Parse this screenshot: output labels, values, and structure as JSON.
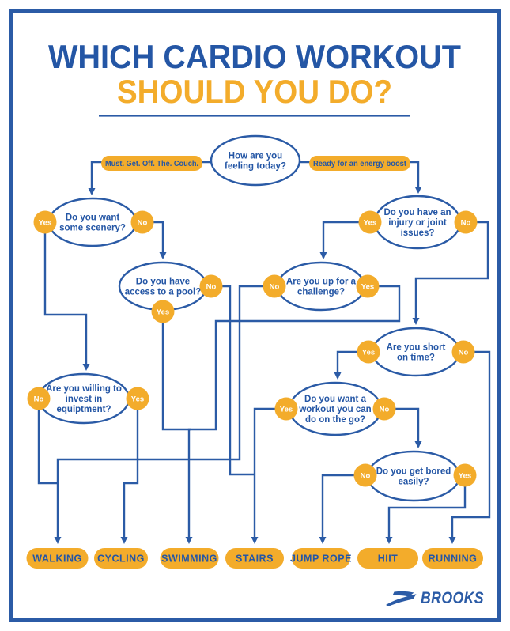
{
  "title": {
    "line1": "WHICH CARDIO WORKOUT",
    "line2": "SHOULD YOU DO?"
  },
  "colors": {
    "blue": "#2B5BA6",
    "text_blue": "#2456A5",
    "yellow": "#F3AC2B",
    "badge_text": "#FFFFFF"
  },
  "flow": {
    "nodes": [
      {
        "id": "feeling",
        "question": "How are you feeling today?",
        "lines": [
          "How are you",
          "feeling today?"
        ]
      },
      {
        "id": "scenery",
        "question": "Do you want some scenery?",
        "lines": [
          "Do you want",
          "some scenery?"
        ]
      },
      {
        "id": "pool",
        "question": "Do you have access to a pool?",
        "lines": [
          "Do you have",
          "access to a pool?"
        ]
      },
      {
        "id": "challenge",
        "question": "Are you up for a challenge?",
        "lines": [
          "Are you up for a",
          "challenge?"
        ]
      },
      {
        "id": "injury",
        "question": "Do you have an injury or joint issues?",
        "lines": [
          "Do you have an",
          "injury or joint",
          "issues?"
        ]
      },
      {
        "id": "short",
        "question": "Are you short on time?",
        "lines": [
          "Are you short",
          "on time?"
        ]
      },
      {
        "id": "go",
        "question": "Do you want a workout you can do on the go?",
        "lines": [
          "Do you want a",
          "workout you can",
          "do on the go?"
        ]
      },
      {
        "id": "bored",
        "question": "Do you get bored easily?",
        "lines": [
          "Do you get bored",
          "easily?"
        ]
      },
      {
        "id": "equipment",
        "question": "Are you willing to invest in equiptment?",
        "lines": [
          "Are you willing to",
          "invest in",
          "equiptment?"
        ]
      }
    ],
    "edges": [
      {
        "id": "e1",
        "from": "feeling",
        "to": "scenery",
        "label": "Must. Get. Off. The. Couch."
      },
      {
        "id": "e2",
        "from": "feeling",
        "to": "injury",
        "label": "Ready for an energy boost"
      },
      {
        "id": "e3",
        "from": "scenery",
        "to": "equipment",
        "answer": "Yes"
      },
      {
        "id": "e4",
        "from": "scenery",
        "to": "pool",
        "answer": "No"
      },
      {
        "id": "e5",
        "from": "pool",
        "to": "SWIMMING",
        "answer": "Yes"
      },
      {
        "id": "e6",
        "from": "pool",
        "to": "STAIRS",
        "answer": "No"
      },
      {
        "id": "e7",
        "from": "equipment",
        "to": "WALKING",
        "answer": "No"
      },
      {
        "id": "e8",
        "from": "challenge",
        "to": "WALKING",
        "answer": "No"
      },
      {
        "id": "e9",
        "from": "challenge",
        "to": "SWIMMING",
        "answer": "Yes"
      },
      {
        "id": "e10",
        "from": "equipment",
        "to": "CYCLING",
        "answer": "Yes"
      },
      {
        "id": "e11",
        "from": "injury",
        "to": "challenge",
        "answer": "Yes"
      },
      {
        "id": "e12",
        "from": "injury",
        "to": "short",
        "answer": "No"
      },
      {
        "id": "e13",
        "from": "short",
        "to": "go",
        "answer": "Yes"
      },
      {
        "id": "e14",
        "from": "short",
        "to": "RUNNING",
        "answer": "No"
      },
      {
        "id": "e15",
        "from": "go",
        "to": "STAIRS",
        "answer": "Yes"
      },
      {
        "id": "e16",
        "from": "go",
        "to": "bored",
        "answer": "No"
      },
      {
        "id": "e17",
        "from": "bored",
        "to": "JUMP ROPE",
        "answer": "No"
      },
      {
        "id": "e18",
        "from": "bored",
        "to": "HIIT",
        "answer": "Yes"
      }
    ],
    "endpoints": [
      "WALKING",
      "CYCLING",
      "SWIMMING",
      "STAIRS",
      "JUMP ROPE",
      "HIIT",
      "RUNNING"
    ]
  },
  "footer": {
    "brand": "BROOKS"
  }
}
